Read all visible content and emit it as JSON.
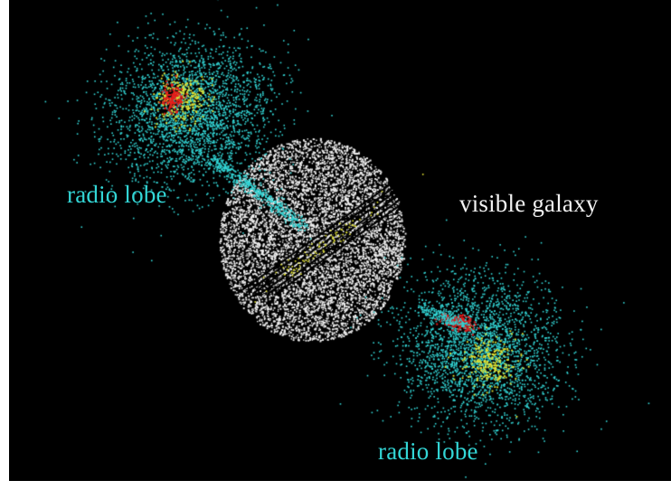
{
  "labels": {
    "radio_lobe_upper": "radio lobe",
    "visible_galaxy": "visible galaxy",
    "radio_lobe_lower": "radio lobe"
  },
  "colors": {
    "background": "#000000",
    "frame_border": "#ffffff",
    "radio_lobe": "#33d6d6",
    "galaxy": "#f2f2f2",
    "hotspot_yellow": "#e6e633",
    "hotspot_red": "#e61a1a"
  },
  "scene": {
    "objects": [
      "upper radio lobe",
      "radio jet",
      "visible galaxy",
      "dust lane",
      "lower radio lobe"
    ]
  }
}
